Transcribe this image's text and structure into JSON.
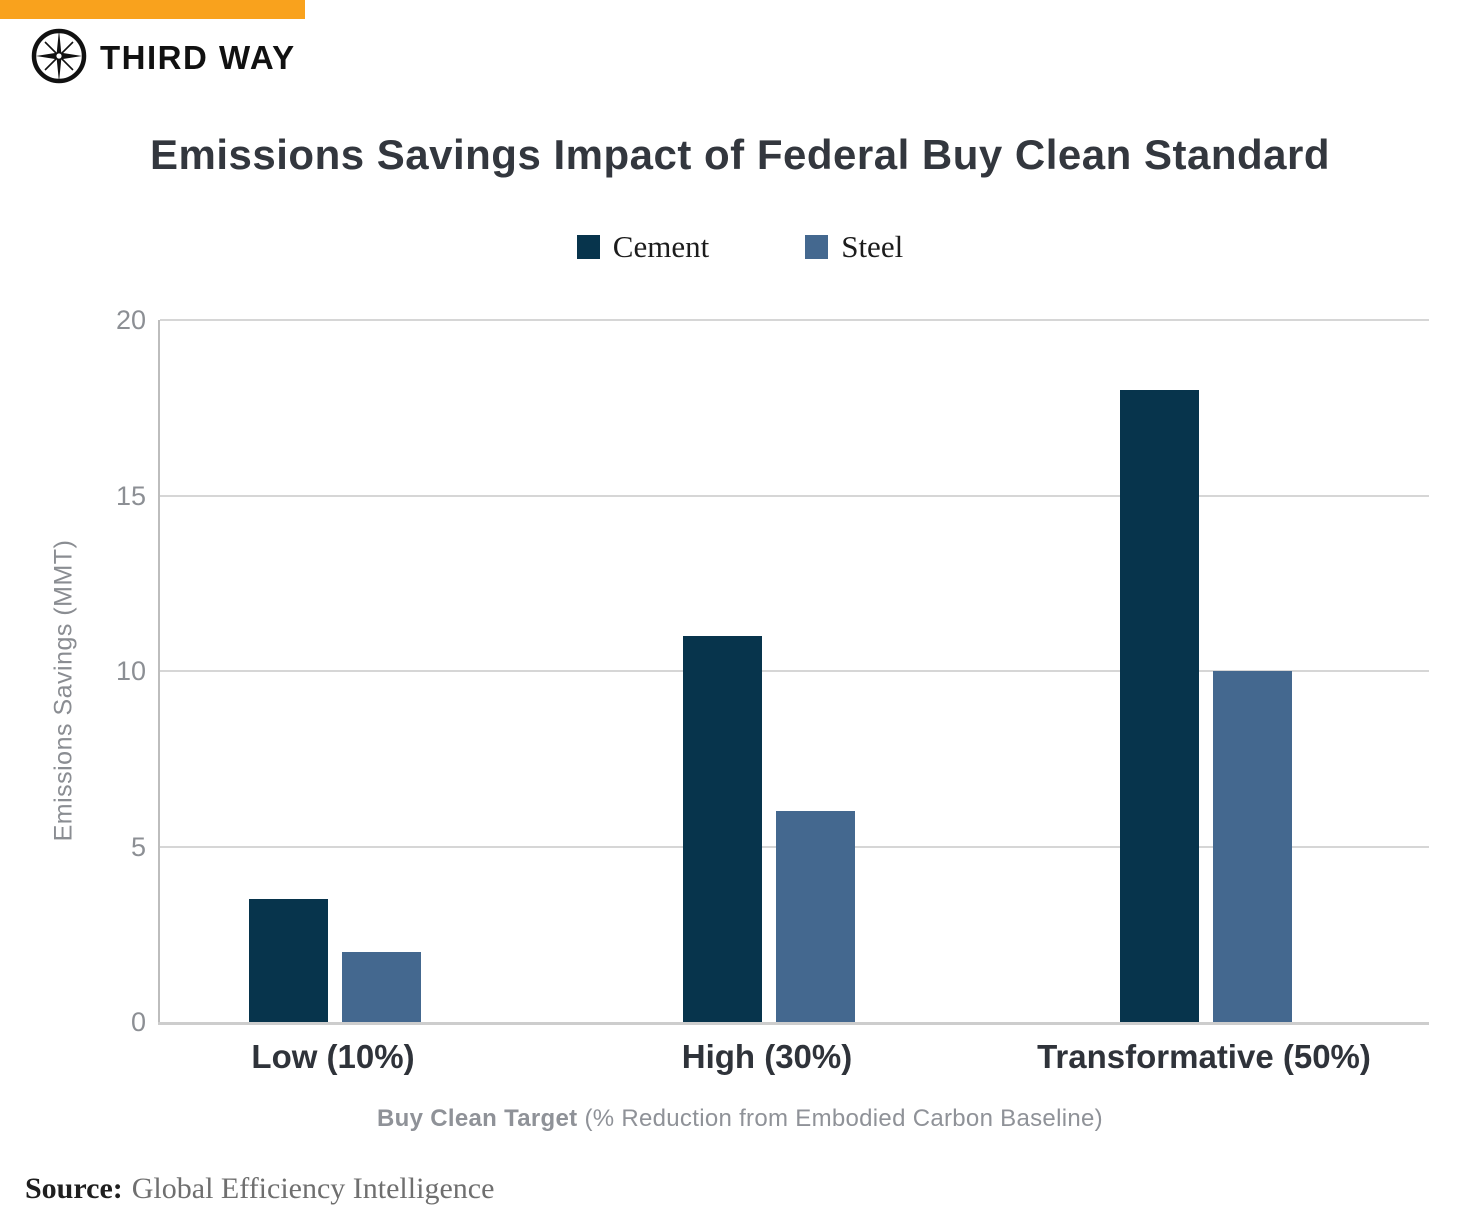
{
  "brand": {
    "name": "THIRD WAY",
    "logo_icon": "compass-star-icon"
  },
  "colors": {
    "accent_orange": "#F9A21D",
    "cement": "#07344C",
    "steel": "#44688F"
  },
  "chart_data": {
    "type": "bar",
    "title": "Emissions Savings Impact of Federal Buy Clean Standard",
    "categories": [
      "Low (10%)",
      "High (30%)",
      "Transformative (50%)"
    ],
    "series": [
      {
        "name": "Cement",
        "color": "#07344C",
        "values": [
          3.5,
          11,
          18
        ]
      },
      {
        "name": "Steel",
        "color": "#44688F",
        "values": [
          2,
          6,
          10
        ]
      }
    ],
    "ylabel": "Emissions Savings (MMT)",
    "xlabel_bold": "Buy Clean Target",
    "xlabel_regular": "(% Reduction from Embodied Carbon Baseline)",
    "ylim": [
      0,
      20
    ],
    "yticks": [
      0,
      5,
      10,
      15,
      20
    ],
    "grid": true,
    "legend_position": "top-center"
  },
  "footer": {
    "source_label": "Source:",
    "source_text": "Global Efficiency Intelligence"
  }
}
